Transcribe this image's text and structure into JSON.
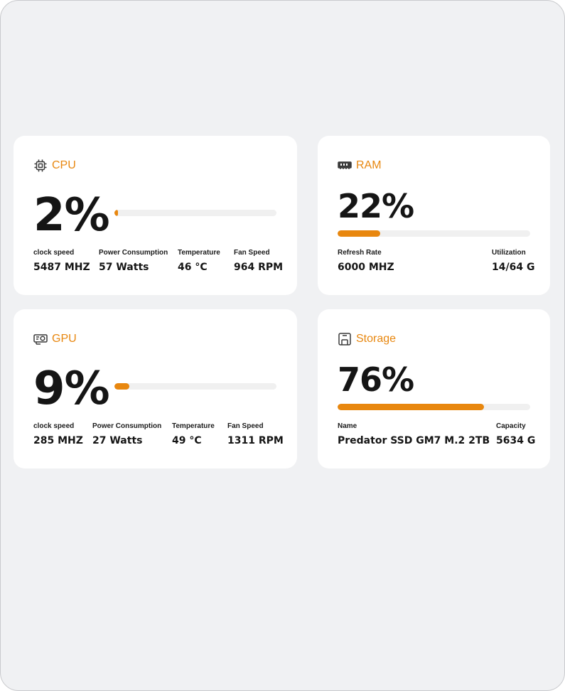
{
  "colors": {
    "accent": "#e8870f",
    "card": "#ffffff",
    "background": "#f0f1f3",
    "track": "#f0f0f0"
  },
  "cpu": {
    "title": "CPU",
    "icon": "cpu-chip-icon",
    "usage": "2%",
    "usage_fraction": 0.02,
    "stats": [
      {
        "label": "clock speed",
        "value": "5487 MHZ"
      },
      {
        "label": "Power Consumption",
        "value": "57 Watts"
      },
      {
        "label": "Temperature",
        "value": "46 °C"
      },
      {
        "label": "Fan Speed",
        "value": "964 RPM"
      }
    ]
  },
  "ram": {
    "title": "RAM",
    "icon": "ram-module-icon",
    "usage": "22%",
    "usage_fraction": 0.22,
    "stats": [
      {
        "label": "Refresh Rate",
        "value": "6000 MHZ"
      },
      {
        "label": "Utilization",
        "value": "14/64 G"
      }
    ]
  },
  "gpu": {
    "title": "GPU",
    "icon": "graphics-card-icon",
    "usage": "9%",
    "usage_fraction": 0.09,
    "stats": [
      {
        "label": "clock speed",
        "value": "285 MHZ"
      },
      {
        "label": "Power Consumption",
        "value": "27 Watts"
      },
      {
        "label": "Temperature",
        "value": "49 °C"
      },
      {
        "label": "Fan Speed",
        "value": "1311 RPM"
      }
    ]
  },
  "storage": {
    "title": "Storage",
    "icon": "storage-drive-icon",
    "usage": "76%",
    "usage_fraction": 0.76,
    "stats": [
      {
        "label": "Name",
        "value": "Predator SSD GM7 M.2 2TB"
      },
      {
        "label": "Capacity",
        "value": "5634 G"
      }
    ]
  }
}
